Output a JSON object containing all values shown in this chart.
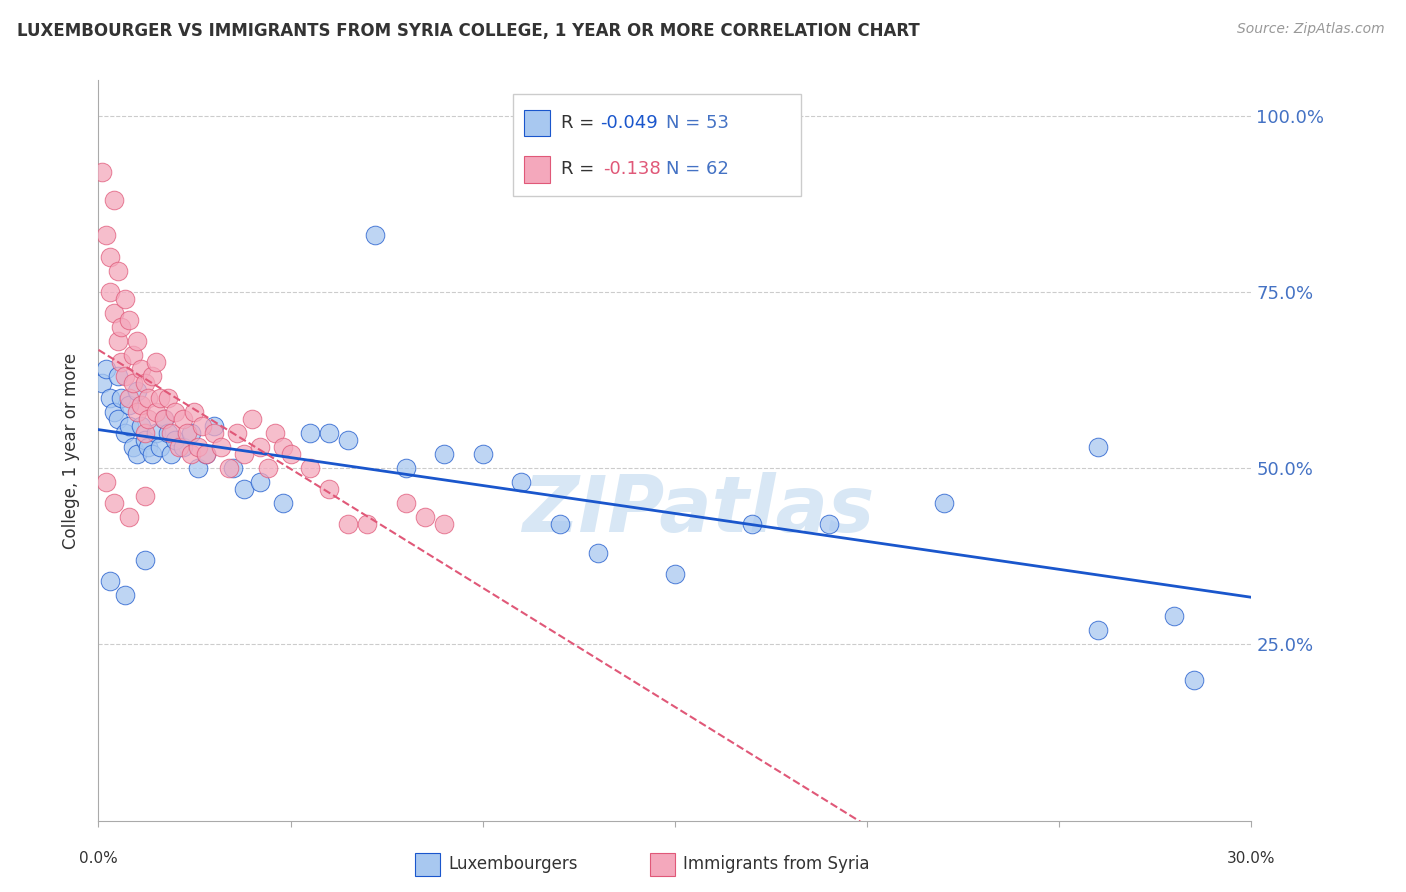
{
  "title": "LUXEMBOURGER VS IMMIGRANTS FROM SYRIA COLLEGE, 1 YEAR OR MORE CORRELATION CHART",
  "source": "Source: ZipAtlas.com",
  "ylabel": "College, 1 year or more",
  "ytick_labels": [
    "100.0%",
    "75.0%",
    "50.0%",
    "25.0%"
  ],
  "ytick_values": [
    1.0,
    0.75,
    0.5,
    0.25
  ],
  "xmin": 0.0,
  "xmax": 0.3,
  "ymin": 0.0,
  "ymax": 1.05,
  "legend_blue_r_val": "-0.049",
  "legend_blue_n": "53",
  "legend_pink_r_val": "-0.138",
  "legend_pink_n": "62",
  "blue_color": "#A8C8F0",
  "pink_color": "#F4A8BC",
  "blue_line_color": "#1A56CC",
  "pink_line_color": "#E05878",
  "watermark": "ZIPatlas",
  "blue_scatter_x": [
    0.001,
    0.002,
    0.003,
    0.004,
    0.005,
    0.005,
    0.006,
    0.007,
    0.008,
    0.008,
    0.009,
    0.01,
    0.01,
    0.011,
    0.012,
    0.013,
    0.014,
    0.015,
    0.016,
    0.017,
    0.018,
    0.019,
    0.02,
    0.022,
    0.024,
    0.026,
    0.028,
    0.03,
    0.035,
    0.038,
    0.042,
    0.048,
    0.055,
    0.06,
    0.065,
    0.072,
    0.08,
    0.09,
    0.1,
    0.11,
    0.12,
    0.13,
    0.15,
    0.17,
    0.19,
    0.22,
    0.26,
    0.28,
    0.003,
    0.007,
    0.012,
    0.26,
    0.285
  ],
  "blue_scatter_y": [
    0.62,
    0.64,
    0.6,
    0.58,
    0.63,
    0.57,
    0.6,
    0.55,
    0.59,
    0.56,
    0.53,
    0.61,
    0.52,
    0.56,
    0.54,
    0.53,
    0.52,
    0.55,
    0.53,
    0.57,
    0.55,
    0.52,
    0.54,
    0.53,
    0.55,
    0.5,
    0.52,
    0.56,
    0.5,
    0.47,
    0.48,
    0.45,
    0.55,
    0.55,
    0.54,
    0.83,
    0.5,
    0.52,
    0.52,
    0.48,
    0.42,
    0.38,
    0.35,
    0.42,
    0.42,
    0.45,
    0.27,
    0.29,
    0.34,
    0.32,
    0.37,
    0.53,
    0.2
  ],
  "pink_scatter_x": [
    0.001,
    0.002,
    0.003,
    0.003,
    0.004,
    0.004,
    0.005,
    0.005,
    0.006,
    0.006,
    0.007,
    0.007,
    0.008,
    0.008,
    0.009,
    0.009,
    0.01,
    0.01,
    0.011,
    0.011,
    0.012,
    0.012,
    0.013,
    0.013,
    0.014,
    0.015,
    0.015,
    0.016,
    0.017,
    0.018,
    0.019,
    0.02,
    0.021,
    0.022,
    0.023,
    0.024,
    0.025,
    0.026,
    0.027,
    0.028,
    0.03,
    0.032,
    0.034,
    0.036,
    0.038,
    0.04,
    0.042,
    0.044,
    0.046,
    0.048,
    0.05,
    0.055,
    0.06,
    0.065,
    0.07,
    0.08,
    0.085,
    0.09,
    0.002,
    0.004,
    0.008,
    0.012
  ],
  "pink_scatter_y": [
    0.92,
    0.83,
    0.8,
    0.75,
    0.88,
    0.72,
    0.78,
    0.68,
    0.7,
    0.65,
    0.74,
    0.63,
    0.71,
    0.6,
    0.66,
    0.62,
    0.68,
    0.58,
    0.64,
    0.59,
    0.62,
    0.55,
    0.6,
    0.57,
    0.63,
    0.65,
    0.58,
    0.6,
    0.57,
    0.6,
    0.55,
    0.58,
    0.53,
    0.57,
    0.55,
    0.52,
    0.58,
    0.53,
    0.56,
    0.52,
    0.55,
    0.53,
    0.5,
    0.55,
    0.52,
    0.57,
    0.53,
    0.5,
    0.55,
    0.53,
    0.52,
    0.5,
    0.47,
    0.42,
    0.42,
    0.45,
    0.43,
    0.42,
    0.48,
    0.45,
    0.43,
    0.46
  ]
}
